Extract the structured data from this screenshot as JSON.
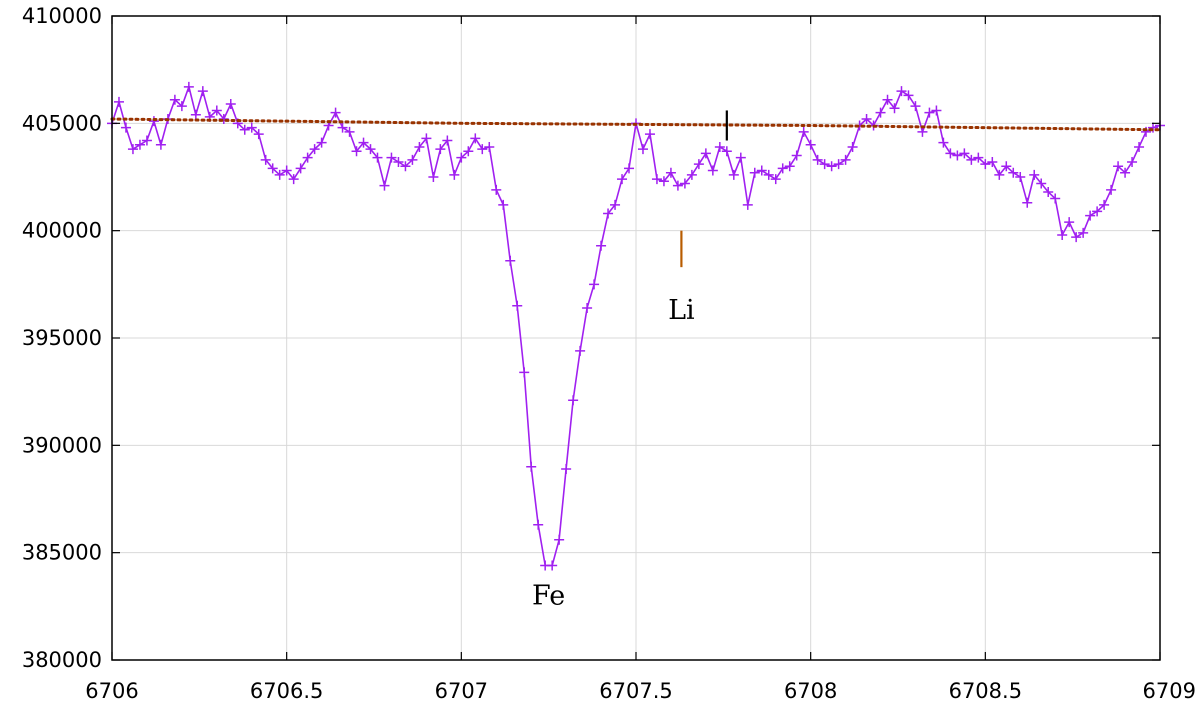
{
  "chart_data": {
    "type": "line",
    "title": "",
    "xlabel": "",
    "ylabel": "",
    "xlim": [
      6706,
      6709
    ],
    "ylim": [
      380000,
      410000
    ],
    "x_ticks": [
      6706,
      6706.5,
      6707,
      6707.5,
      6708,
      6708.5,
      6709
    ],
    "x_tick_labels": [
      "6706",
      "6706.5",
      "6707",
      "6707.5",
      "6708",
      "6708.5",
      "6709"
    ],
    "y_ticks": [
      380000,
      385000,
      390000,
      395000,
      400000,
      405000,
      410000
    ],
    "y_tick_labels": [
      "380000",
      "385000",
      "390000",
      "395000",
      "400000",
      "405000",
      "410000"
    ],
    "grid": true,
    "legend": "none",
    "series": [
      {
        "style": "line+cross-markers",
        "color": "#a020f0",
        "x": [
          6706.0,
          6706.02,
          6706.04,
          6706.06,
          6706.08,
          6706.1,
          6706.12,
          6706.14,
          6706.16,
          6706.18,
          6706.2,
          6706.22,
          6706.24,
          6706.26,
          6706.28,
          6706.3,
          6706.32,
          6706.34,
          6706.36,
          6706.38,
          6706.4,
          6706.42,
          6706.44,
          6706.46,
          6706.48,
          6706.5,
          6706.52,
          6706.54,
          6706.56,
          6706.58,
          6706.6,
          6706.62,
          6706.64,
          6706.66,
          6706.68,
          6706.7,
          6706.72,
          6706.74,
          6706.76,
          6706.78,
          6706.8,
          6706.82,
          6706.84,
          6706.86,
          6706.88,
          6706.9,
          6706.92,
          6706.94,
          6706.96,
          6706.98,
          6707.0,
          6707.02,
          6707.04,
          6707.06,
          6707.08,
          6707.1,
          6707.12,
          6707.14,
          6707.16,
          6707.18,
          6707.2,
          6707.22,
          6707.24,
          6707.26,
          6707.28,
          6707.3,
          6707.32,
          6707.34,
          6707.36,
          6707.38,
          6707.4,
          6707.42,
          6707.44,
          6707.46,
          6707.48,
          6707.5,
          6707.52,
          6707.54,
          6707.56,
          6707.58,
          6707.6,
          6707.62,
          6707.64,
          6707.66,
          6707.68,
          6707.7,
          6707.72,
          6707.74,
          6707.76,
          6707.78,
          6707.8,
          6707.82,
          6707.84,
          6707.86,
          6707.88,
          6707.9,
          6707.92,
          6707.94,
          6707.96,
          6707.98,
          6708.0,
          6708.02,
          6708.04,
          6708.06,
          6708.08,
          6708.1,
          6708.12,
          6708.14,
          6708.16,
          6708.18,
          6708.2,
          6708.22,
          6708.24,
          6708.26,
          6708.28,
          6708.3,
          6708.32,
          6708.34,
          6708.36,
          6708.38,
          6708.4,
          6708.42,
          6708.44,
          6708.46,
          6708.48,
          6708.5,
          6708.52,
          6708.54,
          6708.56,
          6708.58,
          6708.6,
          6708.62,
          6708.64,
          6708.66,
          6708.68,
          6708.7,
          6708.72,
          6708.74,
          6708.76,
          6708.78,
          6708.8,
          6708.82,
          6708.84,
          6708.86,
          6708.88,
          6708.9,
          6708.92,
          6708.94,
          6708.96,
          6708.98,
          6709.0
        ],
        "y": [
          405000,
          406000,
          404800,
          403800,
          404000,
          404200,
          405100,
          404000,
          405200,
          406100,
          405800,
          406700,
          405400,
          406500,
          405300,
          405600,
          405200,
          405900,
          405000,
          404700,
          404800,
          404500,
          403300,
          402900,
          402600,
          402800,
          402400,
          402900,
          403400,
          403800,
          404100,
          404900,
          405500,
          404800,
          404600,
          403700,
          404100,
          403800,
          403400,
          402100,
          403400,
          403200,
          403000,
          403300,
          403900,
          404300,
          402500,
          403800,
          404200,
          402600,
          403400,
          403700,
          404300,
          403800,
          403900,
          401900,
          401200,
          398600,
          396500,
          393400,
          389000,
          386300,
          384400,
          384400,
          385600,
          388900,
          392100,
          394400,
          396400,
          397500,
          399300,
          400800,
          401200,
          402400,
          402900,
          405000,
          403800,
          404500,
          402400,
          402300,
          402700,
          402100,
          402200,
          402600,
          403100,
          403600,
          402800,
          403900,
          403700,
          402600,
          403400,
          401200,
          402700,
          402800,
          402600,
          402400,
          402900,
          403000,
          403500,
          404600,
          404000,
          403300,
          403100,
          403000,
          403100,
          403300,
          403900,
          404900,
          405200,
          404900,
          405500,
          406100,
          405700,
          406500,
          406300,
          405800,
          404600,
          405500,
          405600,
          404100,
          403600,
          403500,
          403600,
          403300,
          403400,
          403100,
          403200,
          402600,
          403000,
          402700,
          402500,
          401300,
          402600,
          402200,
          401800,
          401500,
          399800,
          400400,
          399700,
          399900,
          400700,
          400900,
          401200,
          401900,
          403000,
          402700,
          403200,
          403900,
          404600,
          404800,
          404900
        ]
      },
      {
        "style": "dotted",
        "color": "#993300",
        "x": [
          6706.0,
          6707.0,
          6708.0,
          6709.0
        ],
        "y": [
          405200,
          405000,
          404900,
          404700
        ]
      }
    ],
    "annotations": [
      {
        "text": "Fe",
        "x": 6707.25,
        "y": 383000
      },
      {
        "text": "Li",
        "x": 6707.63,
        "y": 396300
      }
    ],
    "line_markers": [
      {
        "x": 6707.63,
        "y_top": 400000,
        "y_bottom": 398300,
        "color": "#b85c00"
      },
      {
        "x": 6707.76,
        "y_top": 405600,
        "y_bottom": 404200,
        "color": "#000000"
      }
    ]
  }
}
